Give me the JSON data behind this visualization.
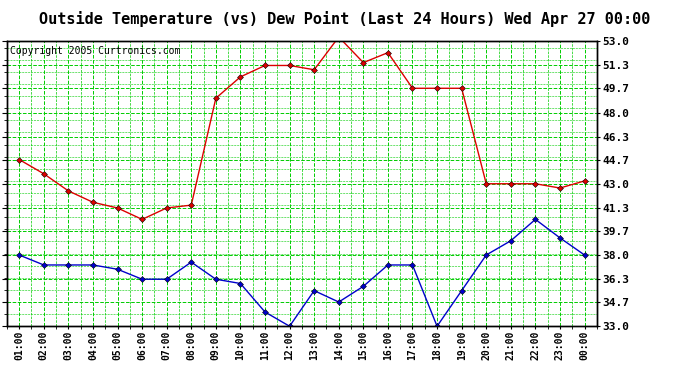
{
  "title": "Outside Temperature (vs) Dew Point (Last 24 Hours) Wed Apr 27 00:00",
  "copyright": "Copyright 2005 Curtronics.com",
  "x_labels": [
    "01:00",
    "02:00",
    "03:00",
    "04:00",
    "05:00",
    "06:00",
    "07:00",
    "08:00",
    "09:00",
    "10:00",
    "11:00",
    "12:00",
    "13:00",
    "14:00",
    "15:00",
    "16:00",
    "17:00",
    "18:00",
    "19:00",
    "20:00",
    "21:00",
    "22:00",
    "23:00",
    "00:00"
  ],
  "y_ticks": [
    33.0,
    34.7,
    36.3,
    38.0,
    39.7,
    41.3,
    43.0,
    44.7,
    46.3,
    48.0,
    49.7,
    51.3,
    53.0
  ],
  "ylim": [
    33.0,
    53.0
  ],
  "temp_red": [
    44.7,
    43.7,
    42.5,
    41.7,
    41.3,
    40.5,
    41.3,
    41.5,
    49.0,
    50.5,
    51.3,
    51.3,
    51.0,
    53.3,
    51.5,
    52.2,
    49.7,
    49.7,
    49.7,
    43.0,
    43.0,
    43.0,
    42.7,
    43.2
  ],
  "dew_blue": [
    38.0,
    37.3,
    37.3,
    37.3,
    37.0,
    36.3,
    36.3,
    37.5,
    36.3,
    36.0,
    34.0,
    33.0,
    35.5,
    34.7,
    35.8,
    37.3,
    37.3,
    33.0,
    35.5,
    38.0,
    39.0,
    40.5,
    39.2,
    38.0
  ],
  "bg_color": "#ffffff",
  "plot_bg_color": "#ffffff",
  "grid_color": "#00cc00",
  "red_color": "#dd0000",
  "blue_color": "#0000cc",
  "title_color": "#000000",
  "copyright_color": "#000000",
  "right_tick_color": "#000000",
  "title_fontsize": 11,
  "copyright_fontsize": 7,
  "tick_fontsize": 8,
  "xtick_fontsize": 7
}
